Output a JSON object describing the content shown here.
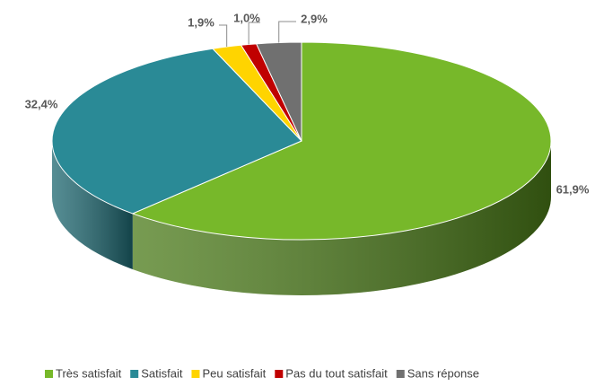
{
  "chart_data": {
    "type": "pie",
    "three_d": true,
    "categories": [
      "Très satisfait",
      "Satisfait",
      "Peu satisfait",
      "Pas du tout satisfait",
      "Sans réponse"
    ],
    "values": [
      61.9,
      32.4,
      1.9,
      1.0,
      2.9
    ],
    "value_labels": [
      "61,9%",
      "32,4%",
      "1,9%",
      "1,0%",
      "2,9%"
    ],
    "colors": [
      "#77b82a",
      "#2a8a96",
      "#ffd400",
      "#c00000",
      "#707070"
    ],
    "side_colors": [
      "#4a7a18",
      "#1d6770",
      "#c9a800",
      "#8a0000",
      "#4a4a4a"
    ],
    "legend": "bottom"
  }
}
